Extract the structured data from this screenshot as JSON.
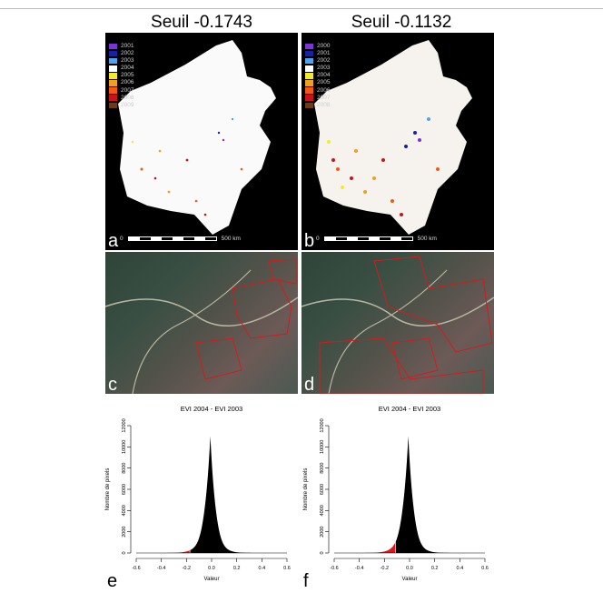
{
  "titles": [
    "Seuil -0.1743",
    "Seuil -0.1132"
  ],
  "maps": [
    {
      "letter": "a",
      "legend": [
        "2001",
        "2002",
        "2003",
        "2004",
        "2005",
        "2006",
        "2007",
        "2008",
        "2009"
      ]
    },
    {
      "letter": "b",
      "legend": [
        "2000",
        "2001",
        "2002",
        "2003",
        "2004",
        "2005",
        "2006",
        "2007",
        "2008"
      ]
    }
  ],
  "legend_colors": [
    "#7b33d6",
    "#1a1fa8",
    "#4fa3ee",
    "#ffffff",
    "#f2ea2a",
    "#f0a020",
    "#f25a12",
    "#c5141a",
    "#6e3a16"
  ],
  "scale": {
    "zero": "0",
    "value": "500",
    "unit": "km"
  },
  "satellite": [
    {
      "letter": "c"
    },
    {
      "letter": "d"
    }
  ],
  "chart_data": [
    {
      "type": "area",
      "title": "EVI 2004 - EVI 2003",
      "xlabel": "Valeur",
      "ylabel": "Nombre de pixels",
      "xlim": [
        -0.6,
        0.6
      ],
      "ylim": [
        0,
        12000
      ],
      "xticks": [
        "-0.6",
        "-0.4",
        "-0.2",
        "0.0",
        "0.2",
        "0.4",
        "0.6"
      ],
      "yticks": [
        "0",
        "2000",
        "4000",
        "6000",
        "8000",
        "10000",
        "12000"
      ],
      "peak": {
        "x": -0.01,
        "y": 11000
      },
      "threshold": -0.1743,
      "series": [
        {
          "values_color": "#000000"
        },
        {
          "values_color": "#e0141a"
        }
      ],
      "letter": "e"
    },
    {
      "type": "area",
      "title": "EVI 2004 - EVI 2003",
      "xlabel": "Valeur",
      "ylabel": "Nombre de pixels",
      "xlim": [
        -0.6,
        0.6
      ],
      "ylim": [
        0,
        12000
      ],
      "xticks": [
        "-0.6",
        "-0.4",
        "-0.2",
        "0.0",
        "0.2",
        "0.4",
        "0.6"
      ],
      "yticks": [
        "0",
        "2000",
        "4000",
        "6000",
        "8000",
        "10000",
        "12000"
      ],
      "peak": {
        "x": -0.01,
        "y": 11000
      },
      "threshold": -0.1132,
      "series": [
        {
          "values_color": "#000000"
        },
        {
          "values_color": "#e0141a"
        }
      ],
      "letter": "f"
    }
  ]
}
